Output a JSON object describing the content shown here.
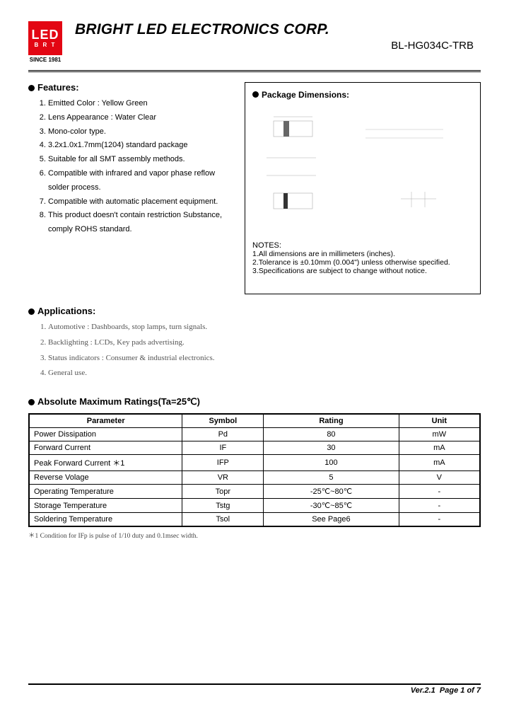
{
  "header": {
    "logo_top": "LED",
    "logo_bottom": "B R T",
    "since": "SINCE 1981",
    "company": "BRIGHT LED ELECTRONICS CORP.",
    "part_number": "BL-HG034C-TRB"
  },
  "features": {
    "title": "Features:",
    "items": [
      "Emitted Color : Yellow Green",
      "Lens Appearance : Water Clear",
      "Mono-color type.",
      "3.2x1.0x1.7mm(1204) standard package",
      "Suitable for all SMT assembly methods.",
      "Compatible with infrared and vapor phase reflow solder process.",
      "Compatible with automatic placement equipment.",
      "This product doesn't contain restriction Substance, comply ROHS standard."
    ]
  },
  "applications": {
    "title": "Applications:",
    "items": [
      "Automotive : Dashboards, stop lamps, turn signals.",
      "Backlighting : LCDs, Key pads advertising.",
      "Status indicators : Consumer & industrial electronics.",
      "General use."
    ]
  },
  "package": {
    "title": "Package Dimensions:",
    "notes_header": "NOTES:",
    "notes": [
      "1.All dimensions are in millimeters (inches).",
      "2.Tolerance is ±0.10mm (0.004\") unless otherwise specified.",
      "3.Specifications are subject to change without notice."
    ]
  },
  "abs_max": {
    "title": "Absolute Maximum Ratings(Ta=25℃)",
    "columns": [
      "Parameter",
      "Symbol",
      "Rating",
      "Unit"
    ],
    "rows": [
      [
        "Power Dissipation",
        "Pd",
        "80",
        "mW"
      ],
      [
        "Forward Current",
        "IF",
        "30",
        "mA"
      ],
      [
        "Peak Forward Current ＊1",
        "IFP",
        "100",
        "mA"
      ],
      [
        "Reverse Volage",
        "VR",
        "5",
        "V"
      ],
      [
        "Operating Temperature",
        "Topr",
        "-25℃~80℃",
        "-"
      ],
      [
        "Storage Temperature",
        "Tstg",
        "-30℃~85℃",
        "-"
      ],
      [
        "Soldering Temperature",
        "Tsol",
        "See Page6",
        "-"
      ]
    ],
    "footnote": "＊1 Condition for IFp is pulse of 1/10 duty and 0.1msec width.",
    "col_widths": [
      "34%",
      "18%",
      "30%",
      "18%"
    ]
  },
  "footer": {
    "version": "Ver.2.1",
    "page": "Page 1 of 7"
  },
  "styling": {
    "accent_red": "#e30613",
    "text_color": "#000000",
    "border_color": "#000000",
    "faded_text": "#555555",
    "body_font_size": 11,
    "title_font_size": 13
  }
}
